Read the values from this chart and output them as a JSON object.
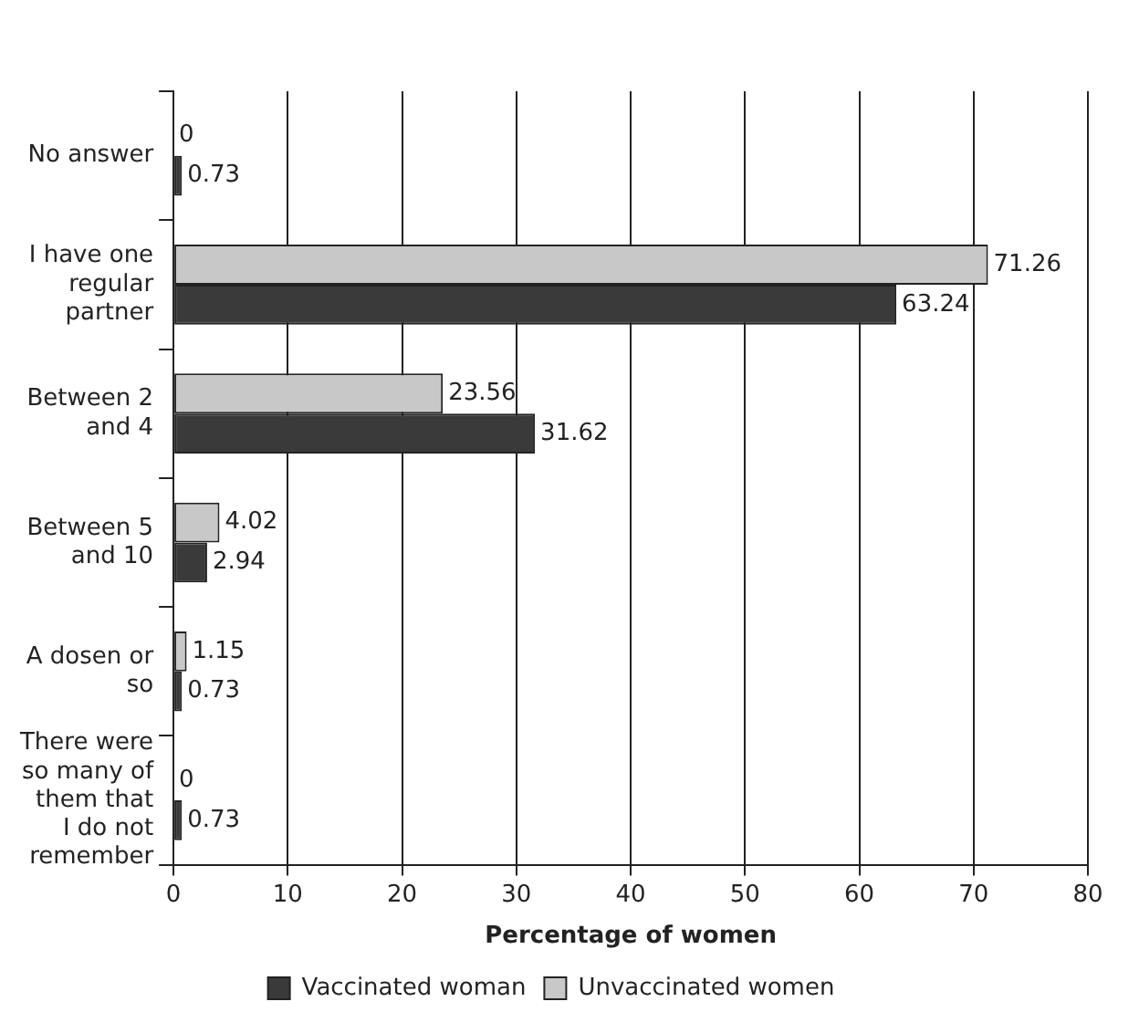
{
  "chart_data": {
    "type": "bar",
    "orientation": "horizontal",
    "xlabel": "Percentage of women",
    "categories": [
      "No answer",
      "I have one regular partner",
      "Between 2 and 4",
      "Between 5 and 10",
      "A dosen or so",
      "There were so many of them that I do not remember"
    ],
    "series": [
      {
        "name": "Vaccinated woman",
        "color": "#3a3a3a",
        "values": [
          0.73,
          63.24,
          31.62,
          2.94,
          0.73,
          0.73
        ]
      },
      {
        "name": "Unvaccinated women",
        "color": "#c8c8c8",
        "values": [
          0,
          71.26,
          23.56,
          4.02,
          1.15,
          0
        ]
      }
    ],
    "xlim": [
      0,
      80
    ],
    "xticks": [
      0,
      10,
      20,
      30,
      40,
      50,
      60,
      70,
      80
    ],
    "grid": "x",
    "legend": "bottom",
    "data_labels": true
  }
}
